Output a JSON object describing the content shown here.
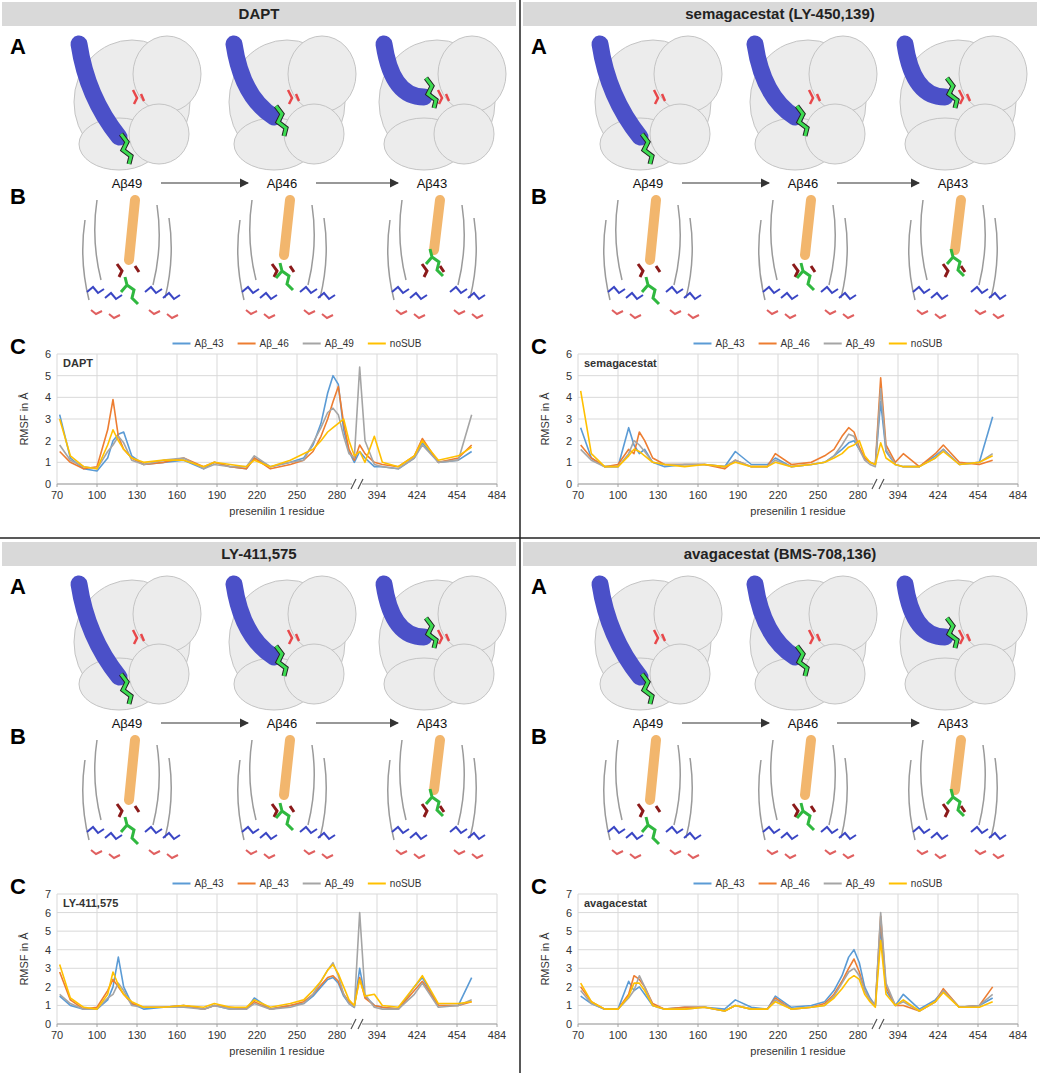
{
  "chart_data": [
    {
      "type": "line",
      "title": "DAPT",
      "annotations": [
        "DAPT"
      ],
      "panel_labels": [
        "A",
        "B",
        "C"
      ],
      "stage_labels": [
        "Aβ49",
        "Aβ46",
        "Aβ43"
      ],
      "xlabel": "presenilin 1 residue",
      "ylabel": "RMSF in Å",
      "x": [
        72,
        80,
        90,
        100,
        108,
        112,
        116,
        120,
        126,
        135,
        150,
        165,
        180,
        188,
        200,
        212,
        218,
        230,
        245,
        255,
        262,
        268,
        273,
        277,
        281,
        285,
        289,
        293,
        381,
        385,
        392,
        398,
        410,
        422,
        428,
        440,
        455,
        465
      ],
      "xlim": [
        70,
        484
      ],
      "xticks": [
        70,
        100,
        130,
        160,
        190,
        220,
        250,
        280,
        394,
        424,
        454,
        484
      ],
      "xbreak": [
        295,
        379
      ],
      "ylim": [
        0,
        6
      ],
      "yticks": [
        0,
        1,
        2,
        3,
        4,
        5,
        6
      ],
      "grid": true,
      "legend": "top",
      "series": [
        {
          "name": "Aβ_43",
          "color": "#5b9bd5",
          "values": [
            3.2,
            1.2,
            0.7,
            0.6,
            1.2,
            2.0,
            2.3,
            2.4,
            1.3,
            0.9,
            1.0,
            1.1,
            0.7,
            1.0,
            0.8,
            0.7,
            1.2,
            0.8,
            1.0,
            1.2,
            1.8,
            2.8,
            4.2,
            5.0,
            4.6,
            2.5,
            1.5,
            1.0,
            1.5,
            1.2,
            0.8,
            0.8,
            0.7,
            1.2,
            1.9,
            1.0,
            1.1,
            1.5
          ]
        },
        {
          "name": "Aβ_46",
          "color": "#ed7d31",
          "values": [
            1.5,
            1.0,
            0.7,
            0.8,
            2.5,
            3.9,
            2.2,
            1.6,
            1.2,
            0.9,
            1.0,
            1.2,
            0.8,
            1.0,
            0.8,
            0.7,
            1.2,
            0.7,
            0.9,
            1.1,
            1.5,
            2.2,
            3.0,
            3.8,
            4.5,
            2.8,
            1.6,
            1.1,
            1.8,
            1.4,
            1.0,
            0.9,
            0.8,
            1.3,
            2.1,
            1.0,
            1.2,
            1.8
          ]
        },
        {
          "name": "Aβ_49",
          "color": "#a5a5a5",
          "values": [
            1.8,
            1.1,
            0.8,
            0.7,
            1.5,
            1.8,
            2.2,
            1.9,
            1.1,
            0.9,
            1.1,
            1.2,
            0.7,
            0.9,
            0.8,
            0.8,
            1.3,
            0.8,
            1.0,
            1.1,
            1.9,
            2.6,
            3.3,
            3.5,
            3.2,
            2.2,
            1.4,
            1.2,
            5.4,
            2.0,
            0.9,
            0.8,
            0.7,
            1.2,
            1.8,
            1.0,
            1.1,
            3.2
          ]
        },
        {
          "name": "noSUB",
          "color": "#ffc000",
          "values": [
            3.0,
            1.3,
            0.8,
            0.7,
            1.8,
            2.5,
            2.0,
            1.6,
            1.2,
            1.0,
            1.1,
            1.1,
            0.8,
            1.0,
            0.9,
            0.8,
            1.1,
            0.8,
            1.1,
            1.4,
            1.6,
            2.0,
            2.4,
            2.6,
            2.8,
            3.0,
            2.0,
            1.3,
            1.5,
            1.0,
            2.2,
            1.0,
            0.8,
            1.3,
            2.0,
            1.1,
            1.3,
            1.7
          ]
        }
      ]
    },
    {
      "type": "line",
      "title": "semagacestat (LY-450,139)",
      "annotations": [
        "semagacestat"
      ],
      "panel_labels": [
        "A",
        "B",
        "C"
      ],
      "stage_labels": [
        "Aβ49",
        "Aβ46",
        "Aβ43"
      ],
      "xlabel": "presenilin 1 residue",
      "ylabel": "RMSF in Å",
      "x": [
        72,
        80,
        90,
        100,
        108,
        112,
        116,
        120,
        126,
        135,
        150,
        165,
        180,
        188,
        200,
        212,
        218,
        230,
        245,
        255,
        262,
        268,
        273,
        277,
        281,
        285,
        289,
        293,
        381,
        385,
        392,
        398,
        410,
        422,
        428,
        440,
        455,
        465
      ],
      "xlim": [
        70,
        484
      ],
      "xticks": [
        70,
        100,
        130,
        160,
        190,
        220,
        250,
        280,
        394,
        424,
        454,
        484
      ],
      "xbreak": [
        295,
        379
      ],
      "ylim": [
        0,
        6
      ],
      "yticks": [
        0,
        1,
        2,
        3,
        4,
        5,
        6
      ],
      "grid": true,
      "legend": "top",
      "series": [
        {
          "name": "Aβ_43",
          "color": "#5b9bd5",
          "values": [
            2.6,
            1.2,
            0.8,
            0.8,
            2.6,
            1.8,
            1.4,
            1.6,
            1.0,
            0.8,
            0.9,
            0.9,
            0.8,
            1.5,
            0.9,
            0.9,
            1.2,
            0.8,
            0.9,
            1.0,
            1.3,
            1.6,
            1.9,
            2.0,
            1.6,
            1.2,
            1.0,
            0.9,
            3.8,
            1.5,
            0.9,
            0.8,
            0.8,
            1.3,
            1.6,
            0.9,
            1.0,
            3.1
          ]
        },
        {
          "name": "Aβ_46",
          "color": "#ed7d31",
          "values": [
            1.8,
            1.2,
            0.8,
            0.9,
            1.6,
            1.4,
            2.4,
            2.0,
            1.2,
            0.9,
            0.9,
            0.9,
            0.7,
            1.1,
            0.8,
            0.8,
            1.4,
            0.9,
            1.0,
            1.3,
            1.6,
            2.2,
            2.6,
            2.4,
            1.7,
            1.2,
            1.0,
            0.9,
            4.9,
            1.8,
            1.0,
            1.4,
            0.8,
            1.4,
            1.8,
            1.0,
            0.9,
            1.1
          ]
        },
        {
          "name": "Aβ_49",
          "color": "#a5a5a5",
          "values": [
            1.6,
            1.1,
            0.8,
            0.8,
            1.4,
            2.0,
            1.8,
            1.5,
            1.0,
            0.9,
            0.9,
            0.9,
            0.8,
            1.1,
            0.8,
            0.8,
            1.1,
            0.8,
            0.9,
            1.0,
            1.3,
            1.8,
            2.3,
            2.2,
            1.6,
            1.1,
            0.9,
            0.8,
            4.4,
            1.6,
            0.9,
            0.8,
            0.8,
            1.2,
            1.6,
            0.9,
            1.0,
            1.4
          ]
        },
        {
          "name": "noSUB",
          "color": "#ffc000",
          "values": [
            4.3,
            1.4,
            0.8,
            0.8,
            1.3,
            1.6,
            1.5,
            1.3,
            1.0,
            0.9,
            0.8,
            0.9,
            0.8,
            1.0,
            0.8,
            0.8,
            1.0,
            0.8,
            0.9,
            1.0,
            1.2,
            1.4,
            1.7,
            1.8,
            2.0,
            1.3,
            1.0,
            0.9,
            1.9,
            1.2,
            0.9,
            0.8,
            0.8,
            1.2,
            1.5,
            0.9,
            1.0,
            1.3
          ]
        }
      ]
    },
    {
      "type": "line",
      "title": "LY-411,575",
      "annotations": [
        "LY-411,575"
      ],
      "panel_labels": [
        "A",
        "B",
        "C"
      ],
      "stage_labels": [
        "Aβ49",
        "Aβ46",
        "Aβ43"
      ],
      "xlabel": "presenilin 1 residue",
      "ylabel": "RMSF in Å",
      "x": [
        72,
        80,
        90,
        100,
        108,
        112,
        116,
        120,
        126,
        135,
        150,
        165,
        180,
        188,
        200,
        212,
        218,
        230,
        245,
        255,
        262,
        268,
        273,
        277,
        281,
        285,
        289,
        293,
        381,
        385,
        392,
        398,
        410,
        422,
        428,
        440,
        455,
        465
      ],
      "xlim": [
        70,
        484
      ],
      "xticks": [
        70,
        100,
        130,
        160,
        190,
        220,
        250,
        280,
        394,
        424,
        454,
        484
      ],
      "xbreak": [
        295,
        379
      ],
      "ylim": [
        0,
        7
      ],
      "yticks": [
        0,
        1,
        2,
        3,
        4,
        5,
        6,
        7
      ],
      "grid": true,
      "legend": "top",
      "series": [
        {
          "name": "Aβ_43",
          "color": "#5b9bd5",
          "values": [
            1.5,
            1.0,
            0.8,
            0.8,
            1.3,
            2.0,
            3.6,
            2.0,
            1.1,
            0.8,
            0.9,
            1.0,
            0.8,
            1.0,
            0.8,
            0.8,
            1.4,
            0.8,
            1.0,
            1.1,
            1.5,
            2.0,
            2.4,
            2.5,
            2.2,
            1.5,
            1.1,
            0.9,
            3.0,
            1.5,
            1.0,
            0.9,
            0.8,
            2.0,
            2.5,
            1.0,
            1.0,
            2.5
          ]
        },
        {
          "name": "Aβ_43",
          "color": "#ed7d31",
          "values": [
            2.8,
            1.3,
            0.8,
            0.9,
            1.8,
            2.4,
            2.0,
            1.6,
            1.1,
            0.9,
            0.9,
            1.0,
            0.8,
            1.0,
            0.9,
            0.8,
            1.2,
            0.8,
            1.0,
            1.2,
            1.6,
            2.1,
            2.5,
            2.6,
            2.3,
            1.6,
            1.2,
            1.0,
            2.5,
            1.4,
            1.0,
            0.9,
            0.8,
            1.8,
            2.3,
            1.0,
            1.0,
            1.2
          ]
        },
        {
          "name": "Aβ_49",
          "color": "#a5a5a5",
          "values": [
            1.6,
            1.1,
            0.8,
            0.8,
            1.4,
            1.6,
            2.2,
            1.8,
            1.0,
            0.9,
            0.9,
            0.9,
            0.8,
            1.0,
            0.8,
            0.8,
            1.1,
            0.8,
            0.9,
            1.1,
            1.6,
            2.3,
            2.9,
            3.3,
            2.6,
            1.6,
            1.1,
            0.9,
            6.0,
            1.6,
            0.9,
            0.8,
            0.8,
            1.6,
            2.2,
            0.9,
            1.0,
            1.3
          ]
        },
        {
          "name": "noSUB",
          "color": "#ffc000",
          "values": [
            3.2,
            1.4,
            0.9,
            0.8,
            1.6,
            2.8,
            2.1,
            1.6,
            1.2,
            0.9,
            0.9,
            1.0,
            0.9,
            1.1,
            0.9,
            0.9,
            1.3,
            0.9,
            1.1,
            1.3,
            1.8,
            2.3,
            2.9,
            3.2,
            2.7,
            2.0,
            1.3,
            1.0,
            2.4,
            1.5,
            1.6,
            1.0,
            0.9,
            2.0,
            2.6,
            1.1,
            1.1,
            1.2
          ]
        }
      ]
    },
    {
      "type": "line",
      "title": "avagacestat (BMS-708,136)",
      "annotations": [
        "avagacestat"
      ],
      "panel_labels": [
        "A",
        "B",
        "C"
      ],
      "stage_labels": [
        "Aβ49",
        "Aβ46",
        "Aβ43"
      ],
      "xlabel": "presenilin 1 residue",
      "ylabel": "RMSF in Å",
      "x": [
        72,
        80,
        90,
        100,
        108,
        112,
        116,
        120,
        126,
        135,
        150,
        165,
        180,
        188,
        200,
        212,
        218,
        230,
        245,
        255,
        262,
        268,
        273,
        277,
        281,
        285,
        289,
        293,
        381,
        385,
        392,
        398,
        410,
        422,
        428,
        440,
        455,
        465
      ],
      "xlim": [
        70,
        484
      ],
      "xticks": [
        70,
        100,
        130,
        160,
        190,
        220,
        250,
        280,
        394,
        424,
        454,
        484
      ],
      "xbreak": [
        295,
        379
      ],
      "ylim": [
        0,
        7
      ],
      "yticks": [
        0,
        1,
        2,
        3,
        4,
        5,
        6,
        7
      ],
      "grid": true,
      "legend": "top",
      "series": [
        {
          "name": "Aβ_43",
          "color": "#5b9bd5",
          "values": [
            1.5,
            1.1,
            0.8,
            0.8,
            2.3,
            1.8,
            2.0,
            1.6,
            1.0,
            0.8,
            0.9,
            0.9,
            0.8,
            1.3,
            0.9,
            0.8,
            1.5,
            0.9,
            1.0,
            1.2,
            1.8,
            2.6,
            3.6,
            4.0,
            3.3,
            2.0,
            1.4,
            1.0,
            5.2,
            1.8,
            1.0,
            1.6,
            0.8,
            1.3,
            1.8,
            0.9,
            1.0,
            1.4
          ]
        },
        {
          "name": "Aβ_46",
          "color": "#ed7d31",
          "values": [
            2.0,
            1.2,
            0.8,
            0.8,
            1.6,
            2.6,
            2.4,
            2.0,
            1.1,
            0.8,
            0.9,
            0.9,
            0.7,
            1.0,
            0.8,
            0.8,
            1.4,
            0.8,
            0.9,
            1.1,
            1.6,
            2.3,
            3.0,
            3.5,
            2.8,
            1.8,
            1.3,
            1.0,
            5.8,
            2.0,
            1.0,
            1.0,
            0.7,
            1.2,
            1.9,
            0.9,
            1.0,
            2.0
          ]
        },
        {
          "name": "Aβ_49",
          "color": "#a5a5a5",
          "values": [
            1.8,
            1.1,
            0.8,
            0.8,
            1.4,
            1.8,
            2.6,
            2.0,
            1.0,
            0.8,
            0.8,
            0.9,
            0.7,
            1.0,
            0.8,
            0.8,
            1.3,
            0.8,
            0.9,
            1.0,
            1.5,
            2.2,
            2.8,
            3.0,
            2.6,
            1.8,
            1.3,
            1.0,
            6.0,
            2.2,
            1.0,
            1.2,
            0.7,
            1.2,
            1.8,
            0.9,
            1.0,
            1.6
          ]
        },
        {
          "name": "noSUB",
          "color": "#ffc000",
          "values": [
            2.2,
            1.2,
            0.8,
            0.8,
            1.5,
            2.2,
            2.2,
            1.8,
            1.0,
            0.8,
            0.8,
            0.9,
            0.7,
            1.0,
            0.8,
            0.8,
            1.2,
            0.8,
            0.9,
            1.0,
            1.4,
            1.9,
            2.4,
            2.6,
            2.4,
            1.6,
            1.2,
            0.9,
            4.5,
            1.6,
            1.0,
            1.3,
            0.7,
            1.2,
            1.7,
            0.9,
            0.9,
            1.2
          ]
        }
      ]
    }
  ]
}
